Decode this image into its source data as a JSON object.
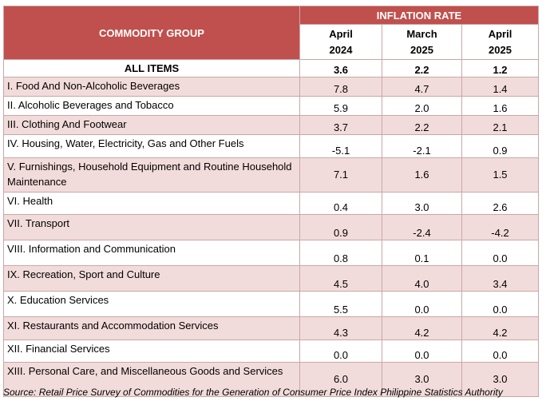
{
  "header": {
    "commodity_group_label": "COMMODITY GROUP",
    "inflation_rate_label": "INFLATION RATE",
    "periods": [
      {
        "month": "April",
        "year": "2024"
      },
      {
        "month": "March",
        "year": "2025"
      },
      {
        "month": "April",
        "year": "2025"
      }
    ]
  },
  "all_items": {
    "name": "ALL ITEMS",
    "values": [
      "3.6",
      "2.2",
      "1.2"
    ]
  },
  "rows": [
    {
      "name": "I. Food And Non-Alcoholic Beverages",
      "values": [
        "7.8",
        "4.7",
        "1.4"
      ]
    },
    {
      "name": "II. Alcoholic Beverages and Tobacco",
      "values": [
        "5.9",
        "2.0",
        "1.6"
      ]
    },
    {
      "name": "III. Clothing And Footwear",
      "values": [
        "3.7",
        "2.2",
        "2.1"
      ]
    },
    {
      "name": "IV. Housing, Water, Electricity, Gas and Other Fuels",
      "values": [
        "-5.1",
        "-2.1",
        "0.9"
      ]
    },
    {
      "name": "V. Furnishings, Household Equipment and Routine Household Maintenance",
      "values": [
        "7.1",
        "1.6",
        "1.5"
      ]
    },
    {
      "name": "VI. Health",
      "values": [
        "0.4",
        "3.0",
        "2.6"
      ]
    },
    {
      "name": "VII. Transport",
      "values": [
        "0.9",
        "-2.4",
        "-4.2"
      ]
    },
    {
      "name": "VIII. Information and Communication",
      "values": [
        "0.8",
        "0.1",
        "0.0"
      ]
    },
    {
      "name": "IX. Recreation, Sport and Culture",
      "values": [
        "4.5",
        "4.0",
        "3.4"
      ]
    },
    {
      "name": "X. Education Services",
      "values": [
        "5.5",
        "0.0",
        "0.0"
      ]
    },
    {
      "name": "XI. Restaurants and Accommodation Services",
      "values": [
        "4.3",
        "4.2",
        "4.2"
      ]
    },
    {
      "name": "XII. Financial Services",
      "values": [
        "0.0",
        "0.0",
        "0.0"
      ]
    },
    {
      "name": "XIII. Personal Care, and Miscellaneous Goods and Services",
      "values": [
        "6.0",
        "3.0",
        "3.0"
      ]
    }
  ],
  "source_note": "Source: Retail Price Survey of Commodities for the Generation of Consumer Price Index Philippine Statistics Authority",
  "colors": {
    "header_red": "#c0504d",
    "row_pink": "#f2dcdb",
    "border": "#c9a7a7"
  }
}
